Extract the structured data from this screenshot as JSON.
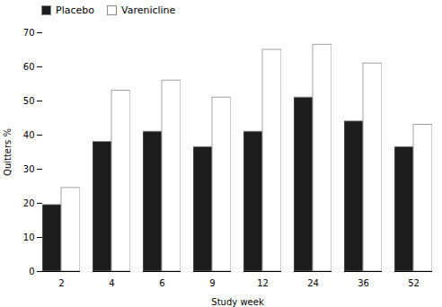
{
  "chart_data": {
    "type": "bar",
    "categories": [
      2,
      4,
      6,
      9,
      12,
      24,
      36,
      52
    ],
    "series": [
      {
        "name": "Placebo",
        "color": "#1c1c1c",
        "values": [
          19.5,
          38.0,
          41.0,
          36.5,
          41.0,
          51.0,
          44.0,
          36.5
        ]
      },
      {
        "name": "Varenicline",
        "color": "#ffffff",
        "values": [
          24.5,
          53.0,
          56.0,
          51.0,
          65.0,
          66.5,
          61.0,
          43.0
        ]
      }
    ],
    "xlabel": "Study week",
    "ylabel": "Quitters %",
    "ylim": [
      0,
      70
    ],
    "yticks": [
      0,
      10,
      20,
      30,
      40,
      50,
      60,
      70
    ],
    "grid": false,
    "legend": "upper left"
  }
}
